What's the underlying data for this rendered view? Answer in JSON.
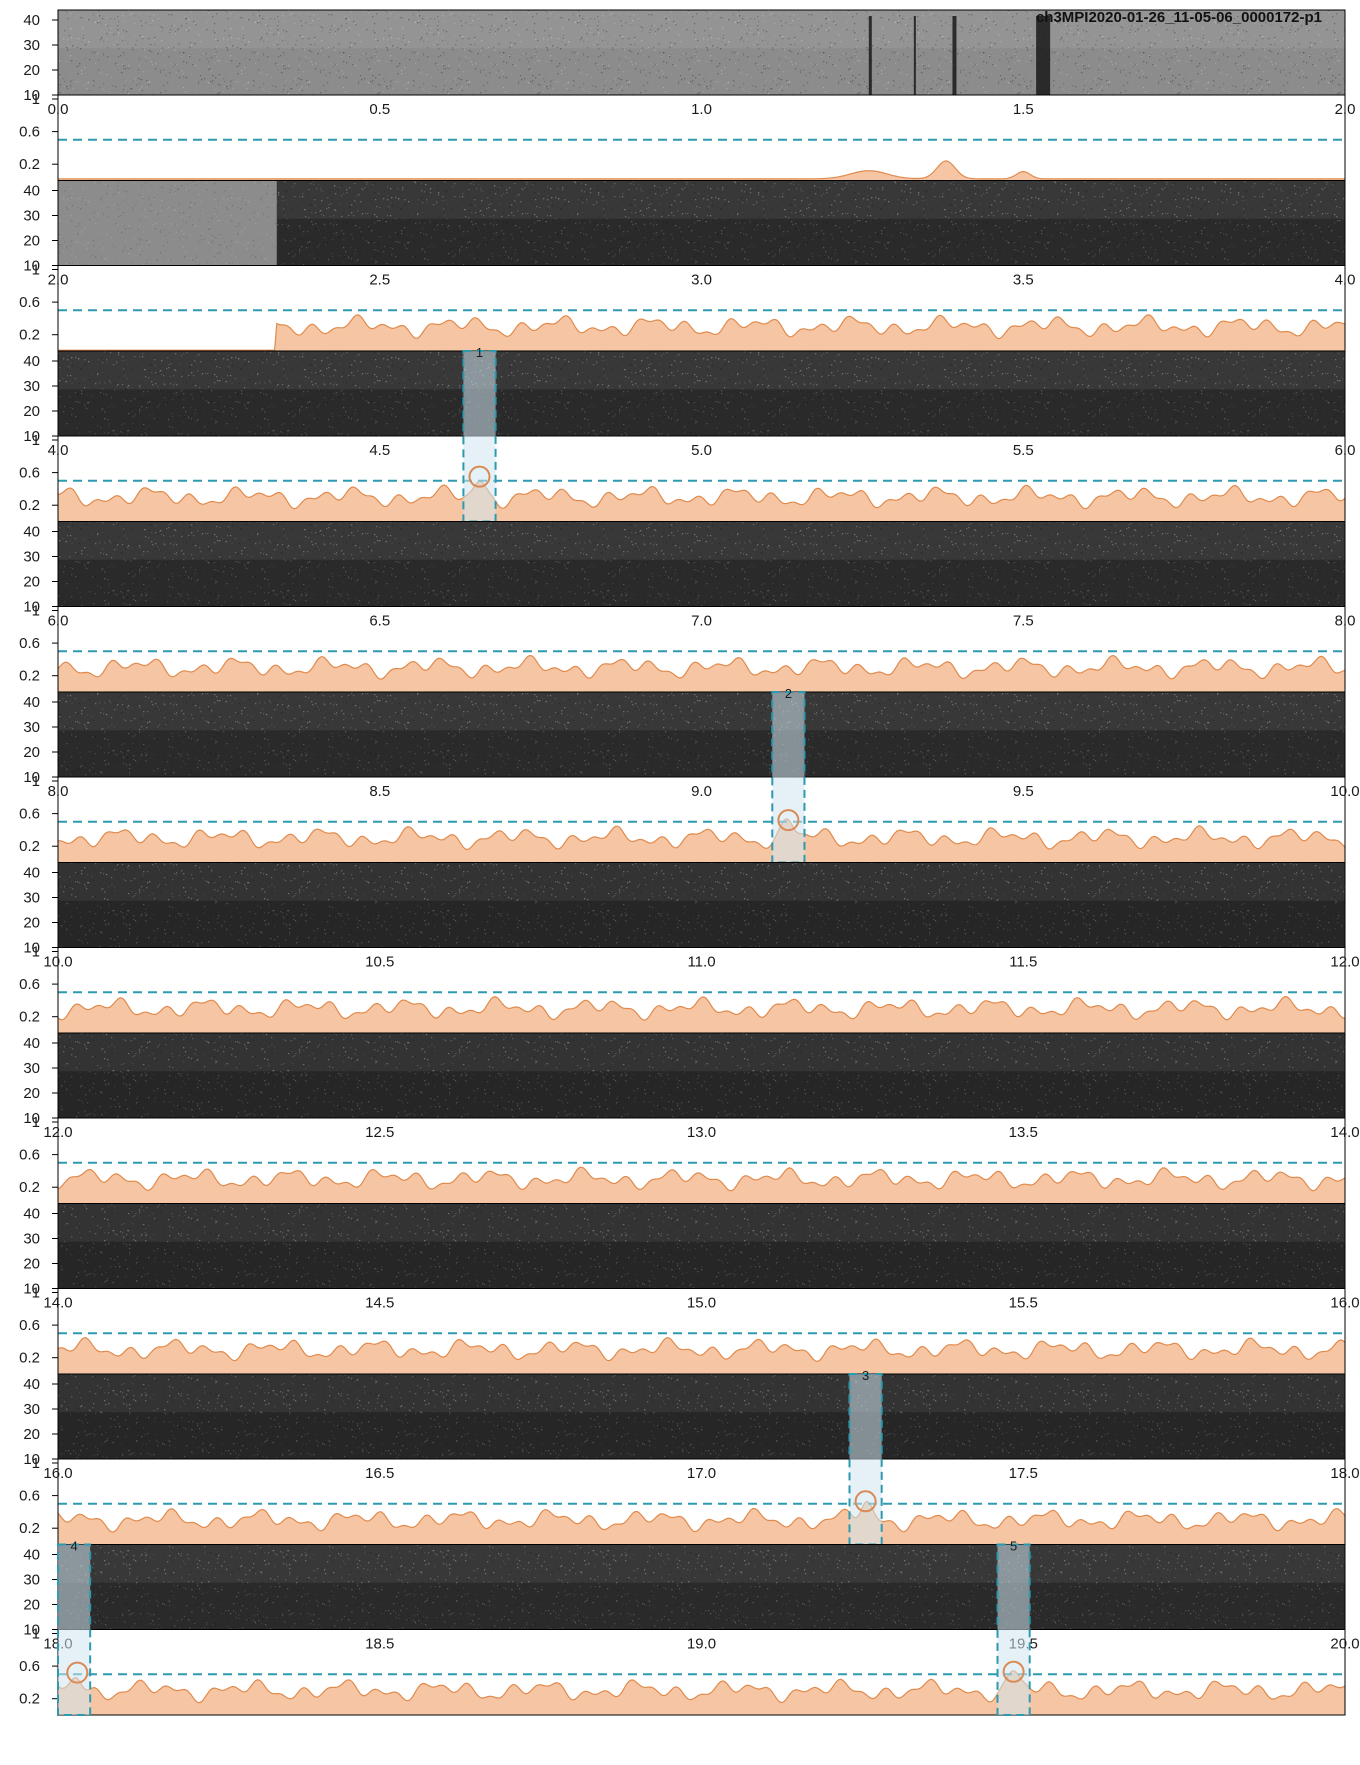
{
  "figure": {
    "title": "ch3MPI2020-01-26_11-05-06_0000172-p1"
  },
  "chart_data": {
    "type": "line",
    "description_free": true,
    "seconds_per_row": 2.0,
    "rows": 10,
    "spectrogram_yticks": [
      "40",
      "30",
      "20",
      "10"
    ],
    "probability_yticks": [
      "1",
      "0.6",
      "0.2"
    ],
    "threshold": 0.5,
    "time_ticks": [
      [
        "0.0",
        "0.5",
        "1.0",
        "1.5",
        "2.0"
      ],
      [
        "2.0",
        "2.5",
        "3.0",
        "3.5",
        "4.0"
      ],
      [
        "4.0",
        "4.5",
        "5.0",
        "5.5",
        "6.0"
      ],
      [
        "6.0",
        "6.5",
        "7.0",
        "7.5",
        "8.0"
      ],
      [
        "8.0",
        "8.5",
        "9.0",
        "9.5",
        "10.0"
      ],
      [
        "10.0",
        "10.5",
        "11.0",
        "11.5",
        "12.0"
      ],
      [
        "12.0",
        "12.5",
        "13.0",
        "13.5",
        "14.0"
      ],
      [
        "14.0",
        "14.5",
        "15.0",
        "15.5",
        "16.0"
      ],
      [
        "16.0",
        "16.5",
        "17.0",
        "17.5",
        "18.0"
      ],
      [
        "18.0",
        "18.5",
        "19.0",
        "19.5",
        "20.0"
      ]
    ],
    "detections": [
      {
        "label": "1",
        "start": 4.63,
        "end": 4.68,
        "peak_time": 4.655,
        "peak_prob": 0.55
      },
      {
        "label": "2",
        "start": 9.11,
        "end": 9.16,
        "peak_time": 9.135,
        "peak_prob": 0.52
      },
      {
        "label": "3",
        "start": 17.23,
        "end": 17.28,
        "peak_time": 17.255,
        "peak_prob": 0.53
      },
      {
        "label": "4",
        "start": 18.0,
        "end": 18.05,
        "peak_time": 18.03,
        "peak_prob": 0.52
      },
      {
        "label": "5",
        "start": 19.46,
        "end": 19.51,
        "peak_time": 19.485,
        "peak_prob": 0.53
      }
    ],
    "row_backgrounds": [
      {
        "brightness": 0.58
      },
      {
        "brightness": 0.22
      },
      {
        "brightness": 0.22
      },
      {
        "brightness": 0.22
      },
      {
        "brightness": 0.22
      },
      {
        "brightness": 0.2
      },
      {
        "brightness": 0.2
      },
      {
        "brightness": 0.2
      },
      {
        "brightness": 0.2
      },
      {
        "brightness": 0.22
      }
    ],
    "colors": {
      "threshold_line": "#2e9ab0",
      "probability_fill": "#f6c6a4",
      "probability_line": "#e08a4c",
      "detection_box_fill": "#cfe6ef",
      "detection_box_line": "#2e9ab0",
      "peak_marker": "#d98a55",
      "axis": "#000000"
    }
  }
}
